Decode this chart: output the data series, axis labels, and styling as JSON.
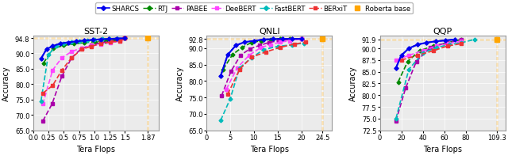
{
  "legend": [
    "SHARCS",
    "RTJ",
    "PABEE",
    "DeeBERT",
    "FastBERT",
    "BERxiT",
    "Roberta base"
  ],
  "colors": {
    "SHARCS": "#0000EE",
    "RTJ": "#008800",
    "PABEE": "#AA00AA",
    "DeeBERT": "#FF44FF",
    "FastBERT": "#00BBBB",
    "BERxiT": "#EE3333",
    "Roberta base": "#FFA500"
  },
  "markers": {
    "SHARCS": "D",
    "RTJ": "D",
    "PABEE": "s",
    "DeeBERT": "s",
    "FastBERT": "D",
    "BERxiT": "s",
    "Roberta base": "s"
  },
  "markersize": 2.5,
  "linewidth": 1.2,
  "SST2": {
    "title": "SST-2",
    "xlim": [
      0.0,
      2.05
    ],
    "ylim": [
      65.0,
      95.8
    ],
    "xticks": [
      0.0,
      0.25,
      0.5,
      0.75,
      1.0,
      1.25,
      1.5,
      1.87
    ],
    "xticklabels": [
      "0.0",
      "0.25",
      "0.5",
      "0.75",
      "1.0",
      "1.25",
      "1.5",
      "1.87"
    ],
    "yticks": [
      65.0,
      70.0,
      75.0,
      80.0,
      85.0,
      90.0,
      94.8
    ],
    "yticklabels": [
      "65.0",
      "70.0",
      "75.0",
      "80.0",
      "85.0",
      "90.0",
      "94.8"
    ],
    "roberta_x": 1.87,
    "roberta_y": 94.8,
    "SHARCS": {
      "x": [
        0.13,
        0.22,
        0.32,
        0.44,
        0.57,
        0.7,
        0.84,
        0.97,
        1.1,
        1.24,
        1.37,
        1.5
      ],
      "y": [
        88.2,
        91.3,
        92.3,
        93.1,
        93.5,
        93.8,
        94.1,
        94.3,
        94.5,
        94.6,
        94.75,
        94.8
      ]
    },
    "RTJ": {
      "x": [
        0.17,
        0.33,
        0.5,
        0.67,
        0.84,
        1.01,
        1.18,
        1.34,
        1.5
      ],
      "y": [
        86.8,
        91.5,
        92.5,
        93.0,
        93.4,
        93.7,
        94.0,
        94.3,
        94.8
      ]
    },
    "PABEE": {
      "x": [
        0.16,
        0.31,
        0.47,
        0.63,
        0.79,
        0.95,
        1.1,
        1.26,
        1.42,
        1.5
      ],
      "y": [
        68.0,
        73.5,
        82.5,
        88.5,
        91.5,
        92.6,
        93.3,
        93.8,
        94.3,
        94.8
      ]
    },
    "DeeBERT": {
      "x": [
        0.16,
        0.32,
        0.47,
        0.63,
        0.79,
        0.95,
        1.1,
        1.26,
        1.42,
        1.5
      ],
      "y": [
        73.5,
        84.5,
        88.5,
        90.5,
        91.7,
        92.3,
        92.9,
        93.4,
        93.9,
        94.8
      ]
    },
    "FastBERT": {
      "x": [
        0.13,
        0.25,
        0.38,
        0.5,
        0.63,
        0.76,
        0.88,
        1.0,
        1.13,
        1.25,
        1.38,
        1.5
      ],
      "y": [
        74.5,
        89.5,
        92.3,
        93.2,
        93.6,
        93.9,
        94.1,
        94.3,
        94.55,
        94.65,
        94.75,
        94.8
      ]
    },
    "BERxiT": {
      "x": [
        0.16,
        0.32,
        0.47,
        0.63,
        0.79,
        0.95,
        1.1,
        1.26,
        1.42,
        1.5
      ],
      "y": [
        77.0,
        79.5,
        84.5,
        88.5,
        91.2,
        92.2,
        93.1,
        93.6,
        93.9,
        94.8
      ]
    }
  },
  "QNLI": {
    "title": "QNLI",
    "xlim": [
      0.0,
      26.5
    ],
    "ylim": [
      65.0,
      93.9
    ],
    "xticks": [
      0,
      5,
      10,
      15,
      20,
      24.5
    ],
    "xticklabels": [
      "0",
      "5",
      "10",
      "15",
      "20",
      "24.5"
    ],
    "yticks": [
      65.0,
      70.0,
      75.0,
      80.0,
      85.0,
      90.0,
      92.8
    ],
    "yticklabels": [
      "65.0",
      "70.0",
      "75.0",
      "80.0",
      "85.0",
      "90.0",
      "92.8"
    ],
    "roberta_x": 24.5,
    "roberta_y": 92.8,
    "SHARCS": {
      "x": [
        3.0,
        4.5,
        6.2,
        8.0,
        10.0,
        12.0,
        14.0,
        16.0,
        18.0,
        20.0
      ],
      "y": [
        81.5,
        88.0,
        90.8,
        91.8,
        92.2,
        92.6,
        92.75,
        92.8,
        92.8,
        92.8
      ]
    },
    "RTJ": {
      "x": [
        3.5,
        5.5,
        7.5,
        9.5,
        11.5,
        13.5,
        15.5,
        17.5,
        20.0
      ],
      "y": [
        83.5,
        88.0,
        90.2,
        91.7,
        92.2,
        92.6,
        92.75,
        92.8,
        92.8
      ]
    },
    "PABEE": {
      "x": [
        3.2,
        5.2,
        7.2,
        9.2,
        11.2,
        13.2,
        15.2,
        17.5,
        20.0
      ],
      "y": [
        75.5,
        83.0,
        87.8,
        89.8,
        90.8,
        91.7,
        92.2,
        92.6,
        92.8
      ]
    },
    "DeeBERT": {
      "x": [
        4.2,
        6.5,
        9.0,
        11.5,
        13.5,
        15.5,
        17.5,
        20.0
      ],
      "y": [
        77.5,
        84.0,
        87.8,
        90.2,
        91.0,
        91.8,
        92.2,
        92.8
      ]
    },
    "FastBERT": {
      "x": [
        3.0,
        5.0,
        7.0,
        9.5,
        12.0,
        15.0,
        18.0,
        20.5
      ],
      "y": [
        68.0,
        74.5,
        84.0,
        87.0,
        89.5,
        90.5,
        91.0,
        91.5
      ]
    },
    "BERxiT": {
      "x": [
        4.5,
        7.0,
        9.5,
        12.5,
        15.5,
        18.5,
        21.0
      ],
      "y": [
        76.0,
        83.5,
        87.2,
        88.8,
        90.2,
        91.2,
        91.8
      ]
    }
  },
  "QQP": {
    "title": "QQP",
    "xlim": [
      0.0,
      117.0
    ],
    "ylim": [
      72.5,
      92.8
    ],
    "xticks": [
      0,
      20,
      40,
      60,
      80,
      109.3
    ],
    "xticklabels": [
      "0",
      "20",
      "40",
      "60",
      "80",
      "109.3"
    ],
    "yticks": [
      72.5,
      75.0,
      77.5,
      80.0,
      82.5,
      85.0,
      87.5,
      90.0,
      91.9
    ],
    "yticklabels": [
      "72.5",
      "75.0",
      "77.5",
      "80.0",
      "82.5",
      "85.0",
      "87.5",
      "90.0",
      "91.9"
    ],
    "roberta_x": 109.3,
    "roberta_y": 91.9,
    "SHARCS": {
      "x": [
        15.0,
        20.0,
        27.0,
        35.0,
        43.0,
        52.0,
        61.0,
        70.0
      ],
      "y": [
        85.8,
        88.5,
        90.0,
        90.8,
        91.2,
        91.5,
        91.7,
        91.9
      ]
    },
    "RTJ": {
      "x": [
        17.0,
        26.0,
        37.0,
        50.0,
        63.0,
        76.0
      ],
      "y": [
        82.8,
        87.2,
        89.5,
        90.5,
        91.2,
        91.9
      ]
    },
    "PABEE": {
      "x": [
        15.0,
        24.0,
        34.0,
        47.0,
        62.0,
        76.0
      ],
      "y": [
        74.5,
        81.5,
        87.2,
        90.2,
        91.2,
        91.9
      ]
    },
    "DeeBERT": {
      "x": [
        15.0,
        27.0,
        40.0,
        53.0,
        64.0,
        76.0
      ],
      "y": [
        87.5,
        88.5,
        89.5,
        90.5,
        91.0,
        91.5
      ]
    },
    "FastBERT": {
      "x": [
        15.0,
        27.0,
        40.0,
        53.0,
        65.0,
        76.0,
        88.0
      ],
      "y": [
        75.0,
        85.5,
        89.0,
        90.2,
        90.8,
        91.2,
        91.9
      ]
    },
    "BERxiT": {
      "x": [
        20.0,
        35.0,
        50.0,
        63.0,
        76.0
      ],
      "y": [
        87.5,
        88.5,
        89.5,
        90.5,
        91.0
      ]
    }
  }
}
